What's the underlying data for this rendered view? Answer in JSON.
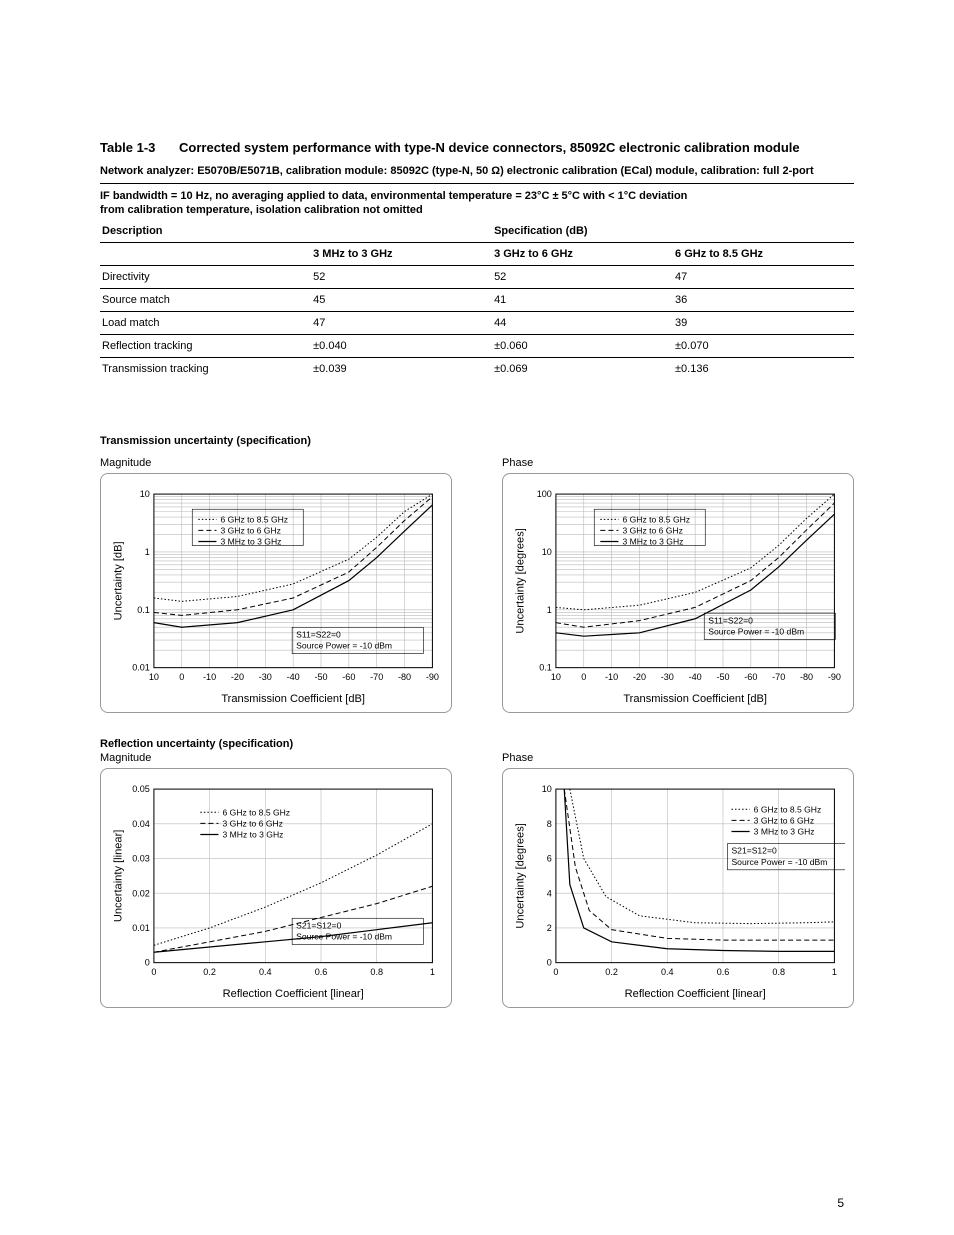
{
  "pageNumber": "5",
  "tableTitle": {
    "num": "Table 1-3",
    "text": "Corrected system performance with type-N device connectors, 85092C electronic calibration module"
  },
  "subtitle1": "Network analyzer: E5070B/E5071B, calibration module: 85092C (type-N, 50 Ω) electronic calibration (ECal) module, calibration: full 2-port",
  "subtitle2a": "IF bandwidth = 10 Hz, no averaging applied to data, environmental temperature = 23°C ± 5°C with < 1°C deviation",
  "subtitle2b": "from calibration temperature, isolation calibration not omitted",
  "specTable": {
    "h_desc": "Description",
    "h_spec": "Specification (dB)",
    "h_c1": "3 MHz to 3 GHz",
    "h_c2": "3 GHz to 6 GHz",
    "h_c3": "6 GHz to 8.5 GHz",
    "rows": [
      {
        "d": "Directivity",
        "c1": "52",
        "c2": "52",
        "c3": "47"
      },
      {
        "d": "Source match",
        "c1": "45",
        "c2": "41",
        "c3": "36"
      },
      {
        "d": "Load match",
        "c1": "47",
        "c2": "44",
        "c3": "39"
      },
      {
        "d": "Reflection tracking",
        "c1": "±0.040",
        "c2": "±0.060",
        "c3": "±0.070"
      },
      {
        "d": "Transmission tracking",
        "c1": "±0.039",
        "c2": "±0.069",
        "c3": "±0.136"
      }
    ]
  },
  "sectionA": "Transmission uncertainty (specification)",
  "sectionB": "Reflection uncertainty (specification)",
  "labelMag": "Magnitude",
  "labelPhase": "Phase",
  "legend": {
    "l1": "6 GHz to 8.5 GHz",
    "l2": "3 GHz to 6 GHz",
    "l3": "3 MHz to 3 GHz"
  },
  "annot": {
    "trans1": "S11=S22=0",
    "trans2": "Source Power = -10 dBm",
    "refl1": "S21=S12=0",
    "refl2": "Source Power = -10 dBm"
  },
  "chartA1": {
    "xlabel": "Transmission Coefficient [dB]",
    "ylabel": "Uncertainty [dB]",
    "xticks": [
      "10",
      "0",
      "-10",
      "-20",
      "-30",
      "-40",
      "-50",
      "-60",
      "-70",
      "-80",
      "-90"
    ],
    "yticks": [
      "0.01",
      "0.1",
      "1",
      "10"
    ],
    "scale": "log",
    "xlim": [
      10,
      -90
    ],
    "ylim": [
      0.01,
      10
    ],
    "series": {
      "solid": [
        [
          10,
          0.06
        ],
        [
          0,
          0.05
        ],
        [
          -20,
          0.06
        ],
        [
          -40,
          0.1
        ],
        [
          -60,
          0.32
        ],
        [
          -70,
          0.8
        ],
        [
          -80,
          2.3
        ],
        [
          -90,
          6.5
        ]
      ],
      "dash": [
        [
          10,
          0.09
        ],
        [
          0,
          0.08
        ],
        [
          -20,
          0.1
        ],
        [
          -40,
          0.16
        ],
        [
          -60,
          0.45
        ],
        [
          -70,
          1.2
        ],
        [
          -80,
          3.5
        ],
        [
          -90,
          9
        ]
      ],
      "dot": [
        [
          10,
          0.16
        ],
        [
          0,
          0.14
        ],
        [
          -20,
          0.17
        ],
        [
          -40,
          0.28
        ],
        [
          -60,
          0.75
        ],
        [
          -70,
          1.8
        ],
        [
          -80,
          5
        ],
        [
          -90,
          10
        ]
      ]
    }
  },
  "chartA2": {
    "xlabel": "Transmission Coefficient [dB]",
    "ylabel": "Uncertainty [degrees]",
    "xticks": [
      "10",
      "0",
      "-10",
      "-20",
      "-30",
      "-40",
      "-50",
      "-60",
      "-70",
      "-80",
      "-90"
    ],
    "yticks": [
      "0.1",
      "1",
      "10",
      "100"
    ],
    "scale": "log",
    "xlim": [
      10,
      -90
    ],
    "ylim": [
      0.1,
      100
    ],
    "series": {
      "solid": [
        [
          10,
          0.4
        ],
        [
          0,
          0.35
        ],
        [
          -20,
          0.4
        ],
        [
          -40,
          0.7
        ],
        [
          -60,
          2.2
        ],
        [
          -70,
          5.5
        ],
        [
          -80,
          16
        ],
        [
          -90,
          45
        ]
      ],
      "dash": [
        [
          10,
          0.6
        ],
        [
          0,
          0.5
        ],
        [
          -20,
          0.65
        ],
        [
          -40,
          1.1
        ],
        [
          -60,
          3.2
        ],
        [
          -70,
          8
        ],
        [
          -80,
          24
        ],
        [
          -90,
          70
        ]
      ],
      "dot": [
        [
          10,
          1.1
        ],
        [
          0,
          1.0
        ],
        [
          -20,
          1.2
        ],
        [
          -40,
          2.0
        ],
        [
          -60,
          5.3
        ],
        [
          -70,
          13
        ],
        [
          -80,
          38
        ],
        [
          -90,
          100
        ]
      ]
    }
  },
  "chartB1": {
    "xlabel": "Reflection Coefficient [linear]",
    "ylabel": "Uncertainty [linear]",
    "xticks": [
      "0",
      "0.2",
      "0.4",
      "0.6",
      "0.8",
      "1"
    ],
    "yticks": [
      "0",
      "0.01",
      "0.02",
      "0.03",
      "0.04",
      "0.05"
    ],
    "scale": "linear",
    "xlim": [
      0,
      1
    ],
    "ylim": [
      0,
      0.05
    ],
    "series": {
      "solid": [
        [
          0,
          0.003
        ],
        [
          0.2,
          0.0045
        ],
        [
          0.4,
          0.006
        ],
        [
          0.6,
          0.0075
        ],
        [
          0.8,
          0.0095
        ],
        [
          1,
          0.0115
        ]
      ],
      "dash": [
        [
          0,
          0.003
        ],
        [
          0.2,
          0.006
        ],
        [
          0.4,
          0.009
        ],
        [
          0.6,
          0.013
        ],
        [
          0.8,
          0.017
        ],
        [
          1,
          0.022
        ]
      ],
      "dot": [
        [
          0,
          0.005
        ],
        [
          0.2,
          0.01
        ],
        [
          0.4,
          0.016
        ],
        [
          0.6,
          0.023
        ],
        [
          0.8,
          0.031
        ],
        [
          1,
          0.04
        ]
      ]
    }
  },
  "chartB2": {
    "xlabel": "Reflection Coefficient [linear]",
    "ylabel": "Uncertainty [degrees]",
    "xticks": [
      "0",
      "0.2",
      "0.4",
      "0.6",
      "0.8",
      "1"
    ],
    "yticks": [
      "0",
      "2",
      "4",
      "6",
      "8",
      "10"
    ],
    "scale": "linear",
    "xlim": [
      0,
      1
    ],
    "ylim": [
      0,
      10
    ],
    "series": {
      "solid": [
        [
          0.03,
          10
        ],
        [
          0.05,
          4.5
        ],
        [
          0.1,
          2
        ],
        [
          0.2,
          1.2
        ],
        [
          0.4,
          0.8
        ],
        [
          0.6,
          0.7
        ],
        [
          0.8,
          0.65
        ],
        [
          1,
          0.65
        ]
      ],
      "dash": [
        [
          0.03,
          10
        ],
        [
          0.07,
          5.5
        ],
        [
          0.12,
          3
        ],
        [
          0.2,
          1.9
        ],
        [
          0.4,
          1.4
        ],
        [
          0.6,
          1.3
        ],
        [
          0.8,
          1.3
        ],
        [
          1,
          1.3
        ]
      ],
      "dot": [
        [
          0.05,
          10
        ],
        [
          0.1,
          6
        ],
        [
          0.18,
          3.8
        ],
        [
          0.3,
          2.7
        ],
        [
          0.5,
          2.3
        ],
        [
          0.7,
          2.25
        ],
        [
          0.9,
          2.3
        ],
        [
          1,
          2.35
        ]
      ]
    }
  },
  "colors": {
    "line": "#000000",
    "grid": "#bbbbbb",
    "bg": "#ffffff",
    "border": "#999999"
  }
}
